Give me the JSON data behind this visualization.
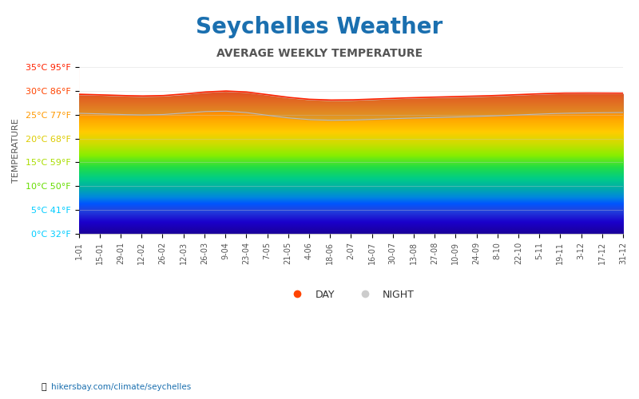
{
  "title": "Seychelles Weather",
  "subtitle": "AVERAGE WEEKLY TEMPERATURE",
  "ylabel": "TEMPERATURE",
  "url_text": "hikersbay.com/climate/seychelles",
  "yticks_celsius": [
    0,
    5,
    10,
    15,
    20,
    25,
    30,
    35
  ],
  "yticks_fahrenheit": [
    32,
    41,
    50,
    59,
    68,
    77,
    86,
    95
  ],
  "ytick_colors": [
    "#00ccff",
    "#00ccff",
    "#66dd00",
    "#aadd00",
    "#ddcc00",
    "#ff9900",
    "#ff4400",
    "#ff2200"
  ],
  "ylim": [
    0,
    35
  ],
  "x_labels": [
    "1-01",
    "15-01",
    "29-01",
    "12-02",
    "26-02",
    "12-03",
    "26-03",
    "9-04",
    "23-04",
    "7-05",
    "21-05",
    "4-06",
    "18-06",
    "2-07",
    "16-07",
    "30-07",
    "13-08",
    "27-08",
    "10-09",
    "24-09",
    "8-10",
    "22-10",
    "5-11",
    "19-11",
    "3-12",
    "17-12",
    "31-12"
  ],
  "title_color": "#1a6faf",
  "subtitle_color": "#555555",
  "title_fontsize": 20,
  "subtitle_fontsize": 10,
  "background_color": "#ffffff",
  "day_temps": [
    29.5,
    29.2,
    29.0,
    28.8,
    28.5,
    28.8,
    30.2,
    30.8,
    30.5,
    29.0,
    28.2,
    28.0,
    27.8,
    28.0,
    28.2,
    28.5,
    28.8,
    28.5,
    28.8,
    29.0,
    28.8,
    29.2,
    29.5,
    29.8,
    29.5,
    29.5,
    29.5
  ],
  "night_temps": [
    25.5,
    25.2,
    25.0,
    24.8,
    24.5,
    25.0,
    26.2,
    26.5,
    26.0,
    24.5,
    24.0,
    23.8,
    23.5,
    23.8,
    24.0,
    24.2,
    24.5,
    24.2,
    24.5,
    24.8,
    24.5,
    25.0,
    25.2,
    25.5,
    25.2,
    25.5,
    25.5
  ],
  "legend_day_color": "#ff4400",
  "legend_night_color": "#cccccc",
  "gradient_colors": [
    "#1a0099",
    "#1a00cc",
    "#2244dd",
    "#0055ff",
    "#0088dd",
    "#00aaaa",
    "#00cc88",
    "#22dd44",
    "#88ee00",
    "#ccdd00",
    "#ffcc00",
    "#ffaa00",
    "#ff7700",
    "#ff4400",
    "#ff2200"
  ],
  "gradient_stops": [
    0.0,
    0.07,
    0.14,
    0.18,
    0.22,
    0.27,
    0.33,
    0.4,
    0.47,
    0.54,
    0.61,
    0.68,
    0.76,
    0.84,
    1.0
  ]
}
